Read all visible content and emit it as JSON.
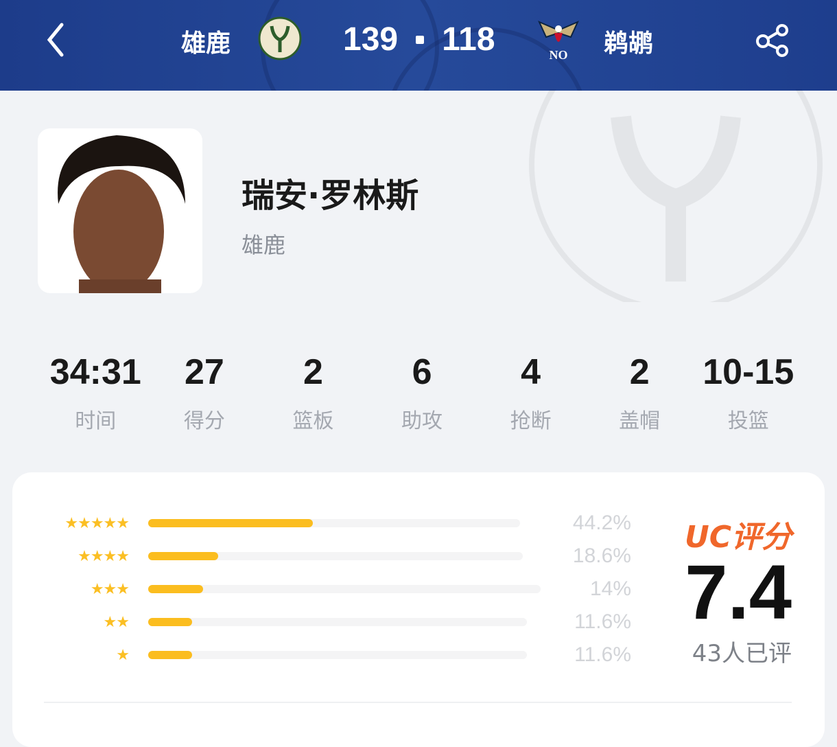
{
  "header": {
    "home_team": "雄鹿",
    "away_team": "鹈鹕",
    "home_score": "139",
    "away_score": "118",
    "home_logo": "bucks-logo",
    "away_logo": "pelicans-logo",
    "colors": {
      "bg": "#1f3f8c"
    }
  },
  "player": {
    "name": "瑞安·罗林斯",
    "team": "雄鹿"
  },
  "stats": [
    {
      "value": "34:31",
      "label": "时间"
    },
    {
      "value": "27",
      "label": "得分"
    },
    {
      "value": "2",
      "label": "篮板"
    },
    {
      "value": "6",
      "label": "助攻"
    },
    {
      "value": "4",
      "label": "抢断"
    },
    {
      "value": "2",
      "label": "盖帽"
    },
    {
      "value": "10-15",
      "label": "投篮"
    }
  ],
  "ratings": {
    "title": "UC评分",
    "score": "7.4",
    "count_text": "43人已评",
    "accent": "#f0672b",
    "bar_color": "#fbbd1f",
    "distribution": [
      {
        "stars": 5,
        "percent": 44.2,
        "label": "44.2%"
      },
      {
        "stars": 4,
        "percent": 18.6,
        "label": "18.6%"
      },
      {
        "stars": 3,
        "percent": 14,
        "label": "14%"
      },
      {
        "stars": 2,
        "percent": 11.6,
        "label": "11.6%"
      },
      {
        "stars": 1,
        "percent": 11.6,
        "label": "11.6%"
      }
    ]
  }
}
